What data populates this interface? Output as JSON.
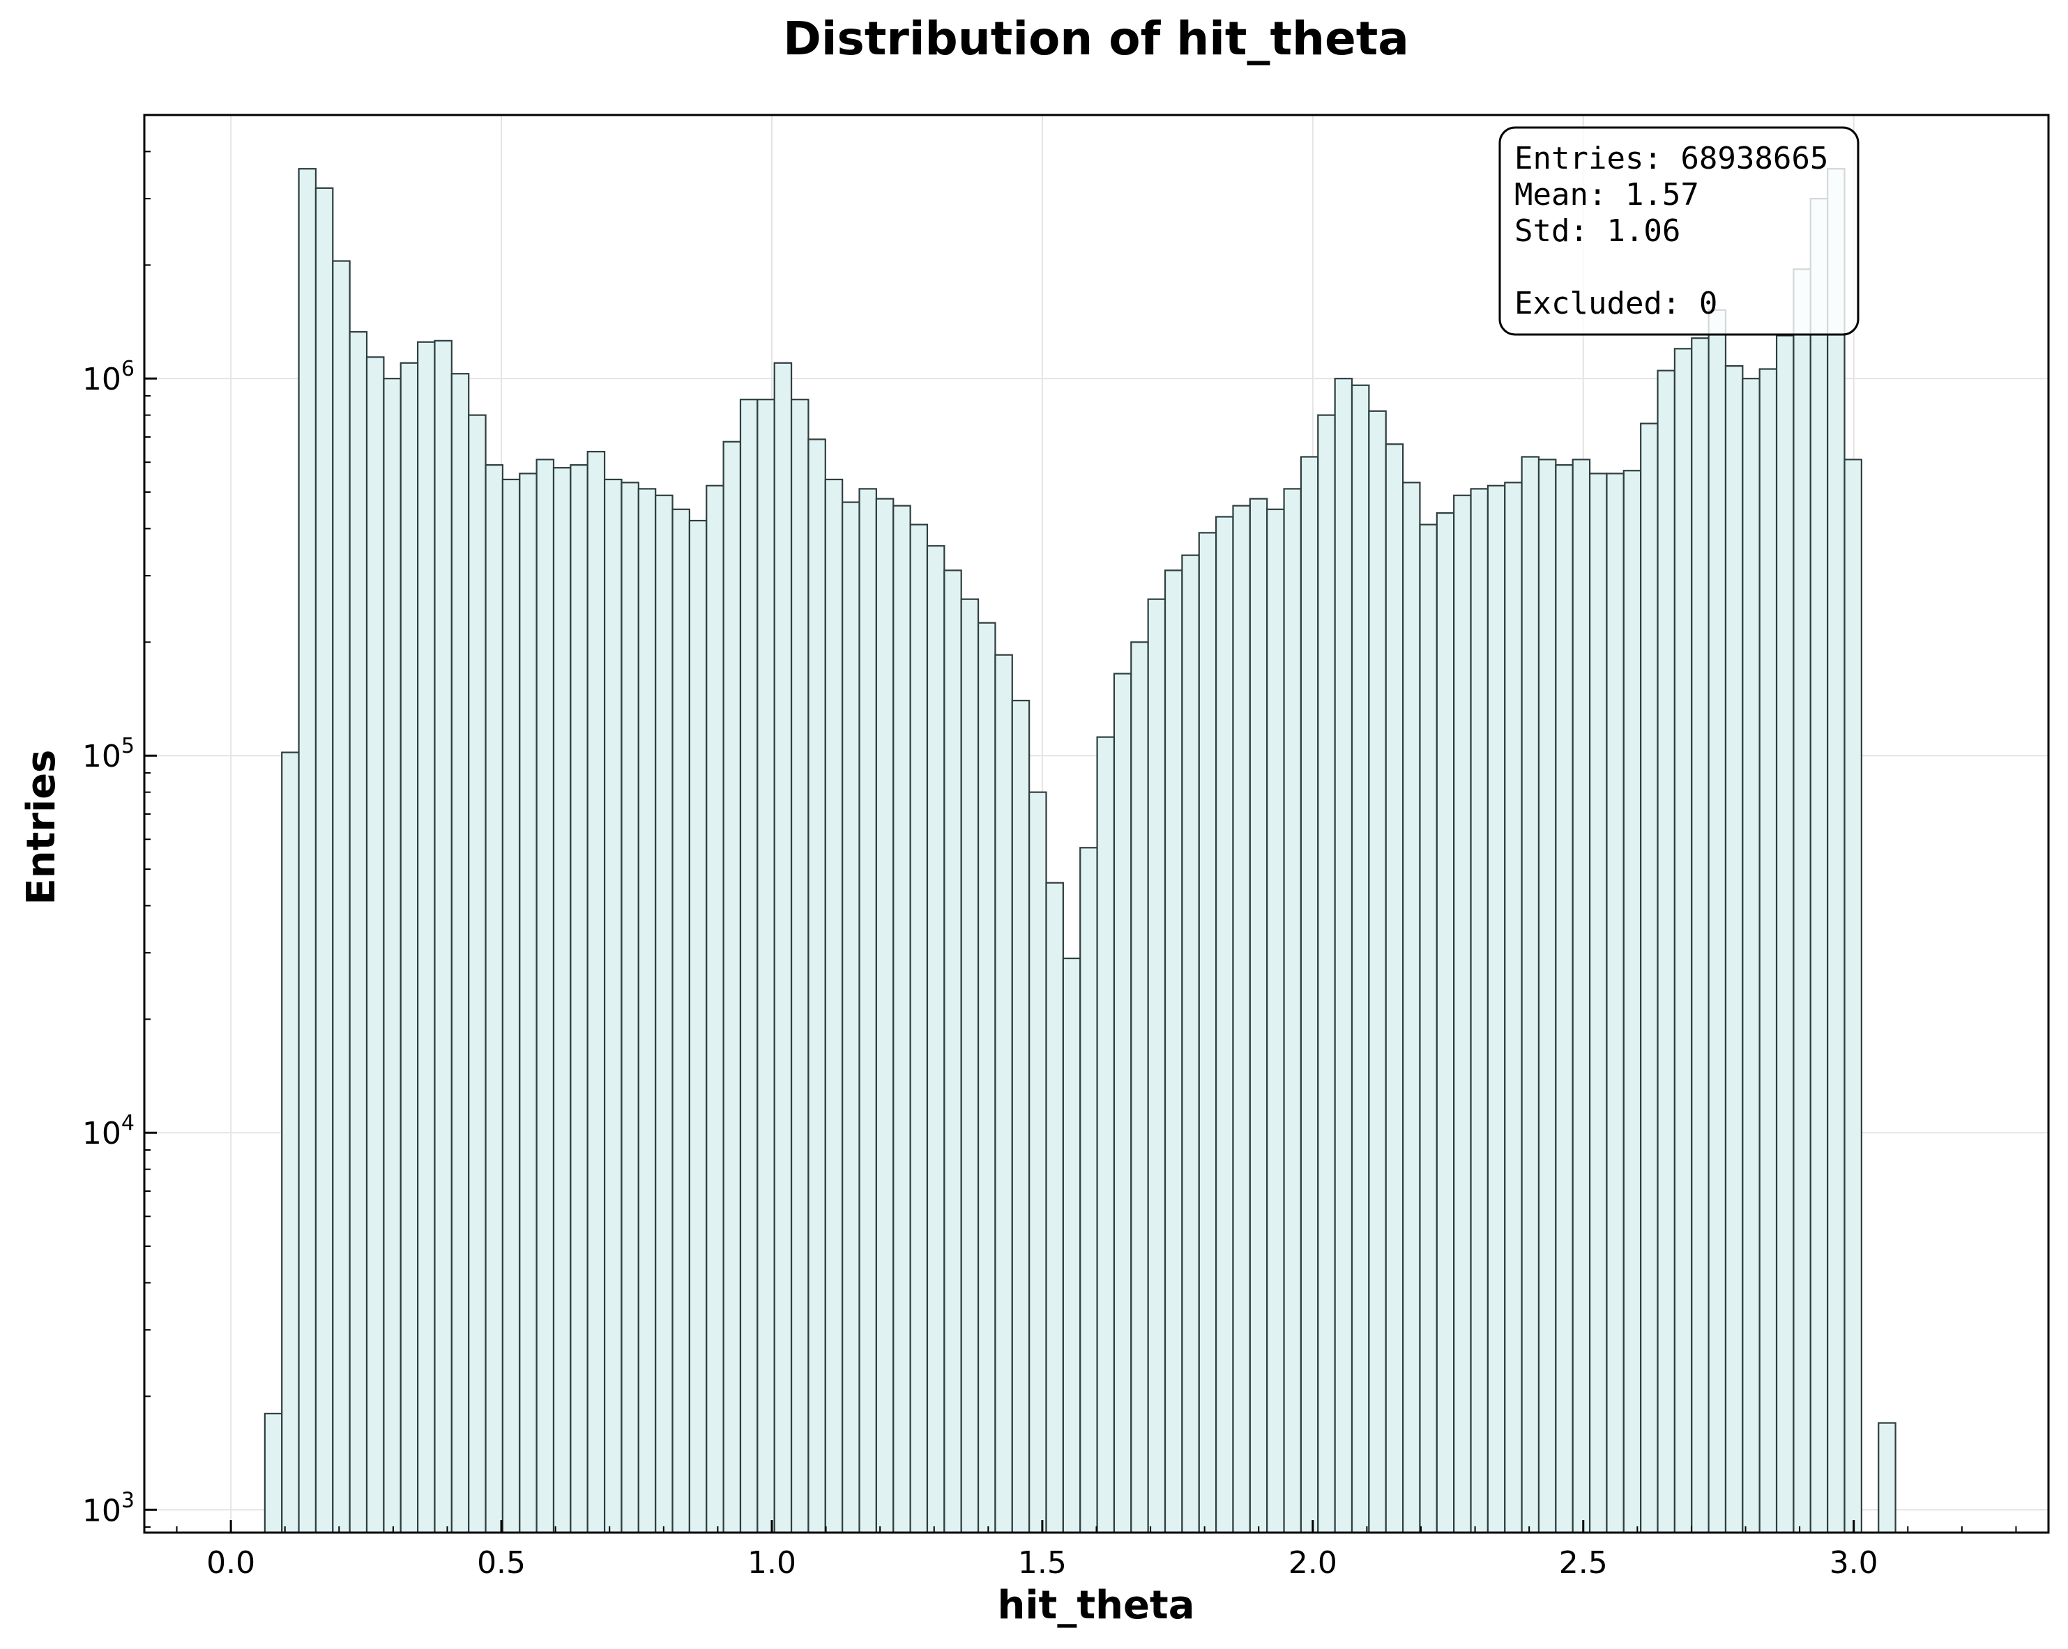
{
  "chart_data": {
    "type": "bar",
    "title": "Distribution of hit_theta",
    "xlabel": "hit_theta",
    "ylabel": "Entries",
    "xlim": [
      -0.16,
      3.36
    ],
    "ylim": [
      870,
      5000000
    ],
    "yscale": "log",
    "grid": true,
    "fill_color": "#e0f2f2",
    "edge_color": "#2f3e3e",
    "x_ticks": [
      "0.0",
      "0.5",
      "1.0",
      "1.5",
      "2.0",
      "2.5",
      "3.0"
    ],
    "y_ticks": [
      {
        "base": "10",
        "exp": "3"
      },
      {
        "base": "10",
        "exp": "4"
      },
      {
        "base": "10",
        "exp": "5"
      },
      {
        "base": "10",
        "exp": "6"
      }
    ],
    "bin_start": 0.0628,
    "bin_width": 0.0314,
    "values": [
      1800,
      102000,
      3600000,
      3200000,
      2050000,
      1330000,
      1140000,
      1000000,
      1100000,
      1250000,
      1260000,
      1030000,
      800000,
      590000,
      540000,
      560000,
      610000,
      580000,
      590000,
      640000,
      540000,
      530000,
      510000,
      490000,
      450000,
      420000,
      520000,
      680000,
      880000,
      880000,
      1100000,
      880000,
      690000,
      540000,
      470000,
      510000,
      480000,
      460000,
      410000,
      360000,
      310000,
      260000,
      225000,
      185000,
      140000,
      80000,
      46000,
      29000,
      57000,
      112000,
      165000,
      200000,
      260000,
      310000,
      340000,
      390000,
      430000,
      460000,
      480000,
      450000,
      510000,
      620000,
      800000,
      1000000,
      960000,
      820000,
      670000,
      530000,
      410000,
      440000,
      490000,
      510000,
      520000,
      530000,
      620000,
      610000,
      590000,
      610000,
      560000,
      560000,
      570000,
      760000,
      1050000,
      1200000,
      1280000,
      1520000,
      1080000,
      1000000,
      1060000,
      1300000,
      1950000,
      3000000,
      3600000,
      610000,
      0,
      1700
    ],
    "stats": {
      "entries": "Entries: 68938665",
      "mean": "Mean: 1.57",
      "std": "Std: 1.06",
      "excluded": "Excluded: 0"
    }
  }
}
